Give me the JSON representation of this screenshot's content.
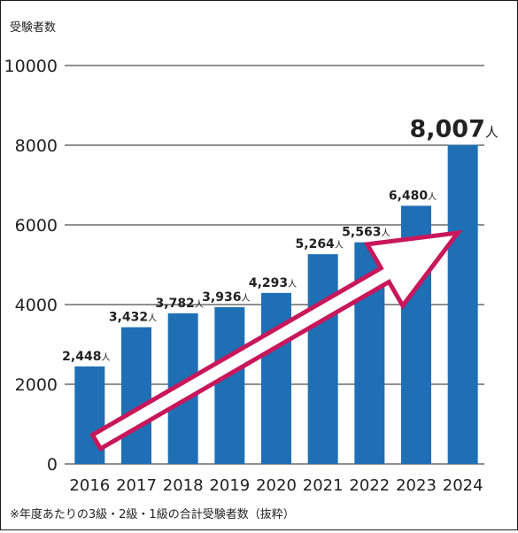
{
  "chart_data": {
    "type": "bar",
    "ylabel": "受験者数",
    "categories": [
      "2016",
      "2017",
      "2018",
      "2019",
      "2020",
      "2021",
      "2022",
      "2023",
      "2024"
    ],
    "values": [
      2448,
      3432,
      3782,
      3936,
      4293,
      5264,
      5563,
      6480,
      8007
    ],
    "data_labels": [
      "2,448",
      "3,432",
      "3,782",
      "3,936",
      "4,293",
      "5,264",
      "5,563",
      "6,480",
      "8,007"
    ],
    "unit": "人",
    "ylim": [
      0,
      10000
    ],
    "yticks": [
      "0",
      "2000",
      "4000",
      "6000",
      "8000",
      "10000"
    ],
    "ytick_values": [
      0,
      2000,
      4000,
      6000,
      8000,
      10000
    ],
    "grid": true,
    "bar_color": "#1f6fb5",
    "arrow_color": "#c8175a",
    "footnote": "※年度あたりの3級・2級・1級の合計受験者数（抜粋）"
  }
}
